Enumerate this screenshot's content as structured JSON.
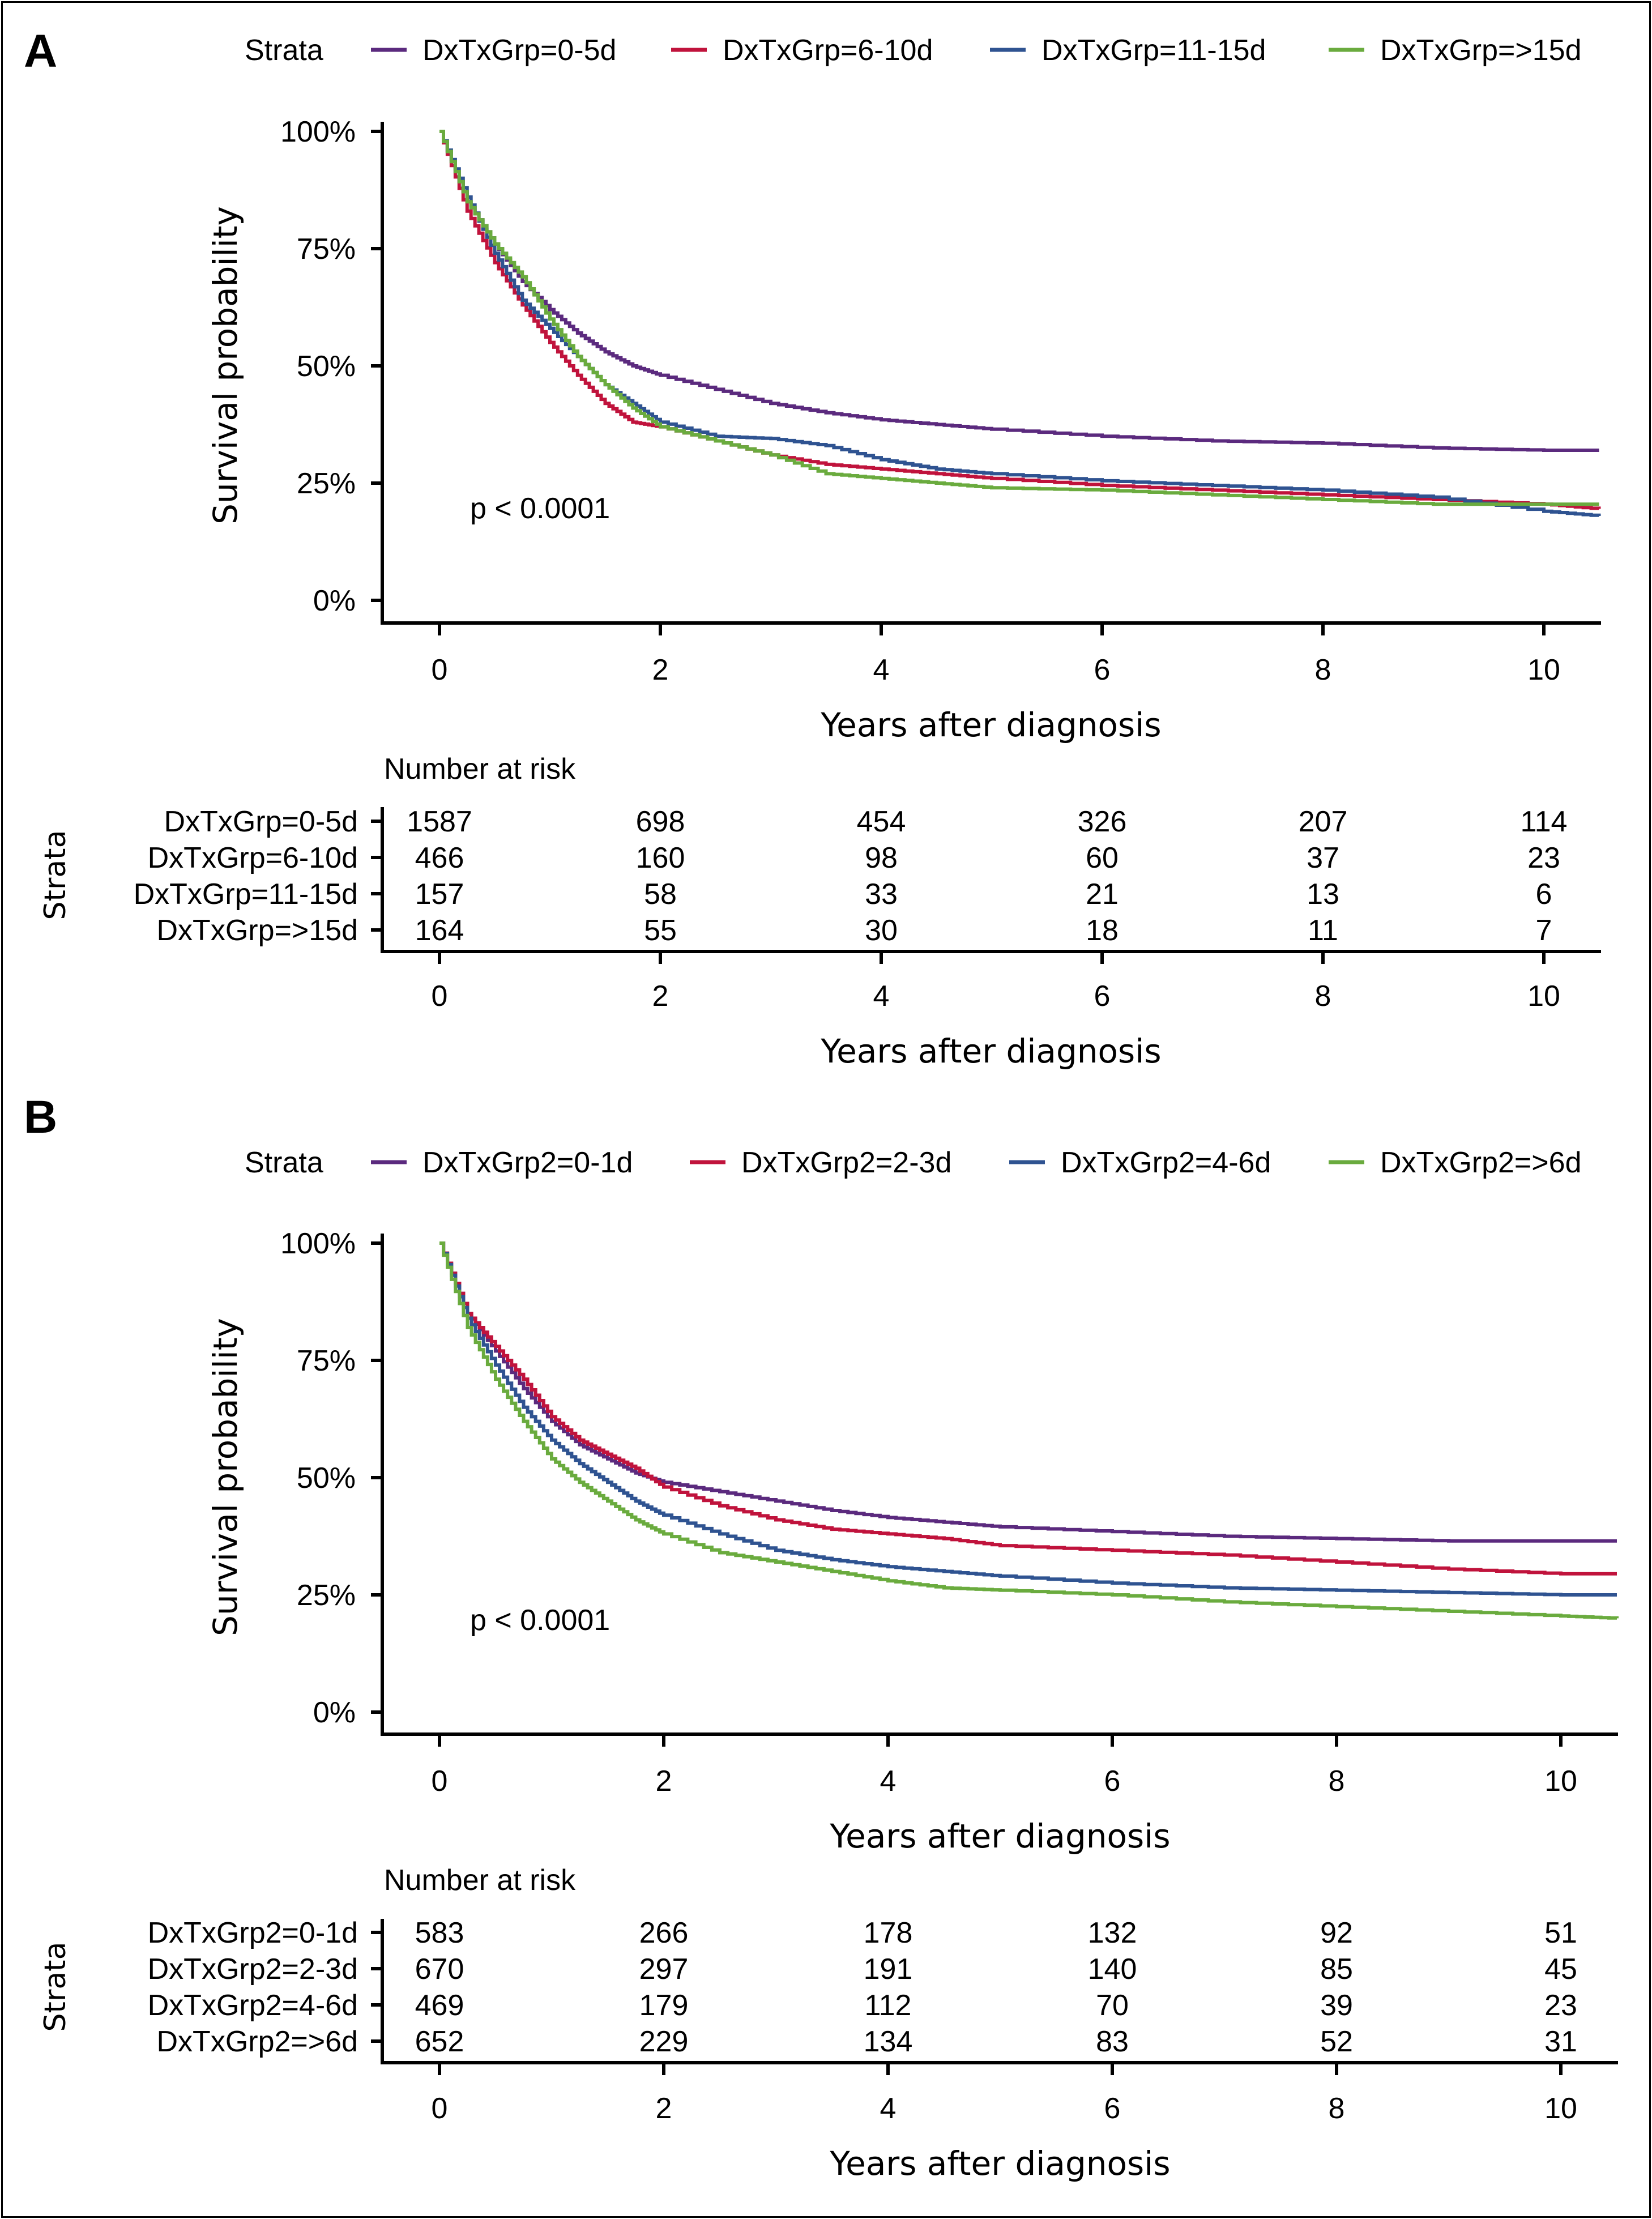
{
  "colors": {
    "purple": "#5b2a7e",
    "red": "#c0133c",
    "blue": "#2f5391",
    "green": "#6aab3e"
  },
  "panels": [
    {
      "letter": "A",
      "legend_title": "Strata",
      "legend": [
        "DxTxGrp=0-5d",
        "DxTxGrp=6-10d",
        "DxTxGrp=11-15d",
        "DxTxGrp=>15d"
      ],
      "ylabel": "Survival probability",
      "xlabel": "Years after diagnosis",
      "y_ticks": [
        "100%",
        "75%",
        "50%",
        "25%",
        "0%"
      ],
      "x_ticks": [
        "0",
        "2",
        "4",
        "6",
        "8",
        "10"
      ],
      "pvalue": "p < 0.0001",
      "risk_title": "Number at risk",
      "risk_axis_label": "Strata",
      "risk_rows": [
        {
          "label": "DxTxGrp=0-5d",
          "values": [
            "1587",
            "698",
            "454",
            "326",
            "207",
            "114"
          ]
        },
        {
          "label": "DxTxGrp=6-10d",
          "values": [
            "466",
            "160",
            "98",
            "60",
            "37",
            "23"
          ]
        },
        {
          "label": "DxTxGrp=11-15d",
          "values": [
            "157",
            "58",
            "33",
            "21",
            "13",
            "6"
          ]
        },
        {
          "label": "DxTxGrp=>15d",
          "values": [
            "164",
            "55",
            "30",
            "18",
            "11",
            "7"
          ]
        }
      ],
      "risk_x_ticks": [
        "0",
        "2",
        "4",
        "6",
        "8",
        "10"
      ],
      "risk_xlabel": "Years after diagnosis"
    },
    {
      "letter": "B",
      "legend_title": "Strata",
      "legend": [
        "DxTxGrp2=0-1d",
        "DxTxGrp2=2-3d",
        "DxTxGrp2=4-6d",
        "DxTxGrp2=>6d"
      ],
      "ylabel": "Survival probability",
      "xlabel": "Years after diagnosis",
      "y_ticks": [
        "100%",
        "75%",
        "50%",
        "25%",
        "0%"
      ],
      "x_ticks": [
        "0",
        "2",
        "4",
        "6",
        "8",
        "10"
      ],
      "pvalue": "p < 0.0001",
      "risk_title": "Number at risk",
      "risk_axis_label": "Strata",
      "risk_rows": [
        {
          "label": "DxTxGrp2=0-1d",
          "values": [
            "583",
            "266",
            "178",
            "132",
            "92",
            "51"
          ]
        },
        {
          "label": "DxTxGrp2=2-3d",
          "values": [
            "670",
            "297",
            "191",
            "140",
            "85",
            "45"
          ]
        },
        {
          "label": "DxTxGrp2=4-6d",
          "values": [
            "469",
            "179",
            "112",
            "70",
            "39",
            "23"
          ]
        },
        {
          "label": "DxTxGrp2=>6d",
          "values": [
            "652",
            "229",
            "134",
            "83",
            "52",
            "31"
          ]
        }
      ],
      "risk_x_ticks": [
        "0",
        "2",
        "4",
        "6",
        "8",
        "10"
      ],
      "risk_xlabel": "Years after diagnosis"
    }
  ],
  "chart_data": [
    {
      "type": "line",
      "title": "",
      "xlabel": "Years after diagnosis",
      "ylabel": "Survival probability",
      "xlim": [
        0,
        10.5
      ],
      "ylim": [
        0,
        1
      ],
      "grid": false,
      "legend_position": "top",
      "series": [
        {
          "name": "DxTxGrp=0-5d",
          "color": "#5b2a7e",
          "x": [
            0,
            0.25,
            0.5,
            0.75,
            1,
            1.25,
            1.5,
            1.75,
            2,
            2.5,
            3,
            3.5,
            4,
            4.5,
            5,
            6,
            7,
            8,
            9,
            10,
            10.5
          ],
          "y": [
            1.0,
            0.85,
            0.76,
            0.68,
            0.62,
            0.57,
            0.53,
            0.5,
            0.48,
            0.45,
            0.42,
            0.4,
            0.385,
            0.375,
            0.365,
            0.35,
            0.34,
            0.335,
            0.325,
            0.32,
            0.32
          ]
        },
        {
          "name": "DxTxGrp=6-10d",
          "color": "#c0133c",
          "x": [
            0,
            0.25,
            0.5,
            0.75,
            1,
            1.25,
            1.5,
            1.75,
            2,
            2.5,
            3,
            3.5,
            4,
            4.5,
            5,
            6,
            7,
            8,
            9,
            10,
            10.5
          ],
          "y": [
            1.0,
            0.83,
            0.72,
            0.63,
            0.55,
            0.48,
            0.42,
            0.38,
            0.37,
            0.34,
            0.31,
            0.29,
            0.28,
            0.27,
            0.26,
            0.245,
            0.235,
            0.225,
            0.215,
            0.205,
            0.195
          ]
        },
        {
          "name": "DxTxGrp=11-15d",
          "color": "#2f5391",
          "x": [
            0,
            0.25,
            0.5,
            0.75,
            1,
            1.25,
            1.5,
            1.75,
            2,
            2.5,
            3,
            3.5,
            4,
            4.5,
            5,
            6,
            7,
            8,
            9,
            10,
            10.5
          ],
          "y": [
            1.0,
            0.86,
            0.74,
            0.64,
            0.58,
            0.52,
            0.46,
            0.42,
            0.38,
            0.35,
            0.345,
            0.33,
            0.3,
            0.28,
            0.27,
            0.255,
            0.245,
            0.235,
            0.22,
            0.19,
            0.18
          ]
        },
        {
          "name": "DxTxGrp=>15d",
          "color": "#6aab3e",
          "x": [
            0,
            0.25,
            0.5,
            0.75,
            1,
            1.25,
            1.5,
            1.75,
            2,
            2.5,
            3,
            3.5,
            4,
            4.5,
            5,
            6,
            7,
            8,
            9,
            10,
            10.5
          ],
          "y": [
            1.0,
            0.85,
            0.76,
            0.69,
            0.6,
            0.52,
            0.46,
            0.41,
            0.37,
            0.34,
            0.31,
            0.27,
            0.26,
            0.25,
            0.24,
            0.235,
            0.225,
            0.215,
            0.205,
            0.205,
            0.205
          ]
        }
      ],
      "annotations": [
        "p < 0.0001"
      ]
    },
    {
      "type": "line",
      "title": "",
      "xlabel": "Years after diagnosis",
      "ylabel": "Survival probability",
      "xlim": [
        0,
        10.5
      ],
      "ylim": [
        0,
        1
      ],
      "grid": false,
      "legend_position": "top",
      "series": [
        {
          "name": "DxTxGrp2=0-1d",
          "color": "#5b2a7e",
          "x": [
            0,
            0.25,
            0.5,
            0.75,
            1,
            1.25,
            1.5,
            1.75,
            2,
            2.5,
            3,
            3.5,
            4,
            4.5,
            5,
            6,
            7,
            8,
            9,
            10,
            10.5
          ],
          "y": [
            1.0,
            0.85,
            0.77,
            0.69,
            0.62,
            0.57,
            0.54,
            0.51,
            0.49,
            0.47,
            0.45,
            0.43,
            0.415,
            0.405,
            0.395,
            0.385,
            0.375,
            0.37,
            0.365,
            0.365,
            0.365
          ]
        },
        {
          "name": "DxTxGrp2=2-3d",
          "color": "#c0133c",
          "x": [
            0,
            0.25,
            0.5,
            0.75,
            1,
            1.25,
            1.5,
            1.75,
            2,
            2.5,
            3,
            3.5,
            4,
            4.5,
            5,
            6,
            7,
            8,
            9,
            10,
            10.5
          ],
          "y": [
            1.0,
            0.85,
            0.78,
            0.71,
            0.63,
            0.58,
            0.55,
            0.52,
            0.48,
            0.44,
            0.41,
            0.39,
            0.38,
            0.37,
            0.355,
            0.345,
            0.335,
            0.32,
            0.305,
            0.295,
            0.295
          ]
        },
        {
          "name": "DxTxGrp2=4-6d",
          "color": "#2f5391",
          "x": [
            0,
            0.25,
            0.5,
            0.75,
            1,
            1.25,
            1.5,
            1.75,
            2,
            2.5,
            3,
            3.5,
            4,
            4.5,
            5,
            6,
            7,
            8,
            9,
            10,
            10.5
          ],
          "y": [
            1.0,
            0.84,
            0.74,
            0.65,
            0.58,
            0.53,
            0.49,
            0.45,
            0.42,
            0.38,
            0.345,
            0.325,
            0.31,
            0.3,
            0.29,
            0.275,
            0.265,
            0.26,
            0.255,
            0.25,
            0.25
          ]
        },
        {
          "name": "DxTxGrp2=>6d",
          "color": "#6aab3e",
          "x": [
            0,
            0.25,
            0.5,
            0.75,
            1,
            1.25,
            1.5,
            1.75,
            2,
            2.5,
            3,
            3.5,
            4,
            4.5,
            5,
            6,
            7,
            8,
            9,
            10,
            10.5
          ],
          "y": [
            1.0,
            0.82,
            0.71,
            0.62,
            0.54,
            0.49,
            0.45,
            0.41,
            0.38,
            0.34,
            0.32,
            0.3,
            0.28,
            0.265,
            0.26,
            0.25,
            0.235,
            0.225,
            0.215,
            0.205,
            0.2
          ]
        }
      ],
      "annotations": [
        "p < 0.0001"
      ]
    }
  ]
}
